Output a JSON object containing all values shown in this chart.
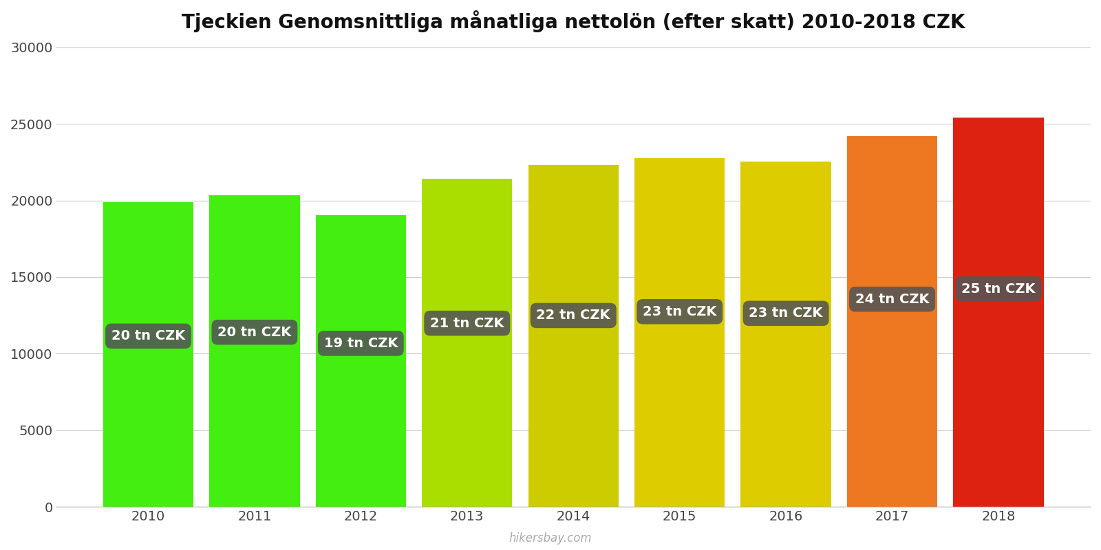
{
  "title": "Tjeckien Genomsnittliga månatliga nettolön (efter skatt) 2010-2018 CZK",
  "years": [
    2010,
    2011,
    2012,
    2013,
    2014,
    2015,
    2016,
    2017,
    2018
  ],
  "values": [
    19900,
    20350,
    19050,
    21400,
    22300,
    22750,
    22550,
    24200,
    25400
  ],
  "bar_colors": [
    "#44ee11",
    "#44ee11",
    "#44ee11",
    "#aadd00",
    "#cccc00",
    "#ddcc00",
    "#ddcc00",
    "#ee7722",
    "#dd2211"
  ],
  "labels": [
    "20 tn CZK",
    "20 tn CZK",
    "19 tn CZK",
    "21 tn CZK",
    "22 tn CZK",
    "23 tn CZK",
    "23 tn CZK",
    "24 tn CZK",
    "25 tn CZK"
  ],
  "label_box_color": "#555555",
  "label_text_color": "#ffffff",
  "ylim": [
    0,
    30000
  ],
  "yticks": [
    0,
    5000,
    10000,
    15000,
    20000,
    25000,
    30000
  ],
  "background_color": "#ffffff",
  "grid_color": "#cccccc",
  "watermark": "hikersbay.com",
  "title_fontsize": 20,
  "label_fontsize": 14,
  "tick_fontsize": 14,
  "bar_width": 0.85
}
